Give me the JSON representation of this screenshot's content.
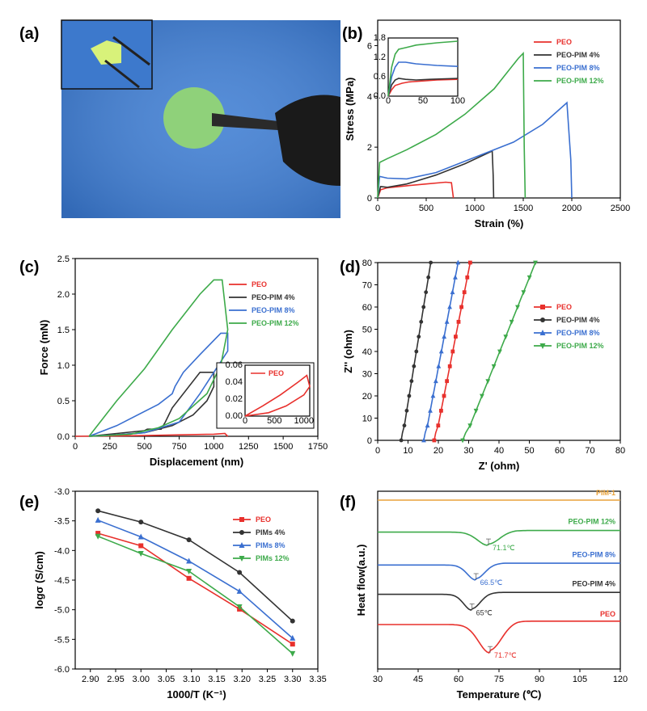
{
  "panels": {
    "a": "(a)",
    "b": "(b)",
    "c": "(c)",
    "d": "(d)",
    "e": "(e)",
    "f": "(f)"
  },
  "chart_data": [
    {
      "id": "a",
      "type": "photo",
      "description_colors": {
        "background": "#3f7ed3",
        "disk": "#8fd17a"
      }
    },
    {
      "id": "b",
      "type": "line",
      "xlabel": "Strain (%)",
      "ylabel": "Stress (MPa)",
      "xlim": [
        0,
        2500
      ],
      "ylim": [
        0,
        7
      ],
      "xticks": [
        "0",
        "500",
        "1000",
        "1500",
        "2000",
        "2500"
      ],
      "yticks": [
        "0",
        "2",
        "4",
        "6"
      ],
      "series": [
        {
          "name": "PEO",
          "color": "#e8302c",
          "x": [
            0,
            30,
            100,
            300,
            500,
            700,
            760,
            770,
            780
          ],
          "y": [
            0,
            0.32,
            0.4,
            0.48,
            0.55,
            0.62,
            0.6,
            0.3,
            0
          ]
        },
        {
          "name": "PEO-PIM 4%",
          "color": "#333333",
          "x": [
            0,
            30,
            100,
            300,
            600,
            900,
            1180,
            1190,
            1195
          ],
          "y": [
            0,
            0.45,
            0.42,
            0.55,
            0.9,
            1.35,
            1.85,
            0.9,
            0
          ]
        },
        {
          "name": "PEO-PIM 8%",
          "color": "#3a6fd0",
          "x": [
            0,
            20,
            100,
            300,
            600,
            1000,
            1400,
            1700,
            1950,
            1990,
            2000
          ],
          "y": [
            0,
            0.85,
            0.78,
            0.75,
            1.0,
            1.6,
            2.2,
            2.9,
            3.75,
            1.5,
            0
          ]
        },
        {
          "name": "PEO-PIM 12%",
          "color": "#3daa4a",
          "x": [
            0,
            20,
            100,
            300,
            600,
            900,
            1200,
            1450,
            1500,
            1510,
            1520
          ],
          "y": [
            0,
            1.4,
            1.55,
            1.9,
            2.5,
            3.3,
            4.3,
            5.5,
            5.7,
            2.0,
            0
          ]
        }
      ],
      "inset": {
        "xlim": [
          0,
          100
        ],
        "ylim": [
          0,
          1.8
        ],
        "xticks": [
          "0",
          "50",
          "100"
        ],
        "yticks": [
          "0.0",
          "0.6",
          "1.2",
          "1.8"
        ],
        "series": [
          {
            "color": "#e8302c",
            "x": [
              0,
              5,
              10,
              20,
              30,
              50,
              70,
              100
            ],
            "y": [
              0,
              0.2,
              0.33,
              0.4,
              0.44,
              0.47,
              0.5,
              0.52
            ]
          },
          {
            "color": "#333333",
            "x": [
              0,
              5,
              10,
              15,
              25,
              40,
              60,
              100
            ],
            "y": [
              0,
              0.35,
              0.5,
              0.55,
              0.52,
              0.5,
              0.52,
              0.55
            ]
          },
          {
            "color": "#3a6fd0",
            "x": [
              0,
              5,
              10,
              15,
              25,
              40,
              70,
              100
            ],
            "y": [
              0,
              0.6,
              0.9,
              1.05,
              1.05,
              1.0,
              0.95,
              0.92
            ]
          },
          {
            "color": "#3daa4a",
            "x": [
              0,
              5,
              10,
              15,
              25,
              40,
              70,
              100
            ],
            "y": [
              0,
              0.9,
              1.3,
              1.45,
              1.5,
              1.58,
              1.65,
              1.7
            ]
          }
        ]
      }
    },
    {
      "id": "c",
      "type": "line",
      "xlabel": "Displacement (nm)",
      "ylabel": "Force (mN)",
      "xlim": [
        0,
        1750
      ],
      "ylim": [
        0,
        2.5
      ],
      "xticks": [
        "0",
        "250",
        "500",
        "750",
        "1000",
        "1250",
        "1500",
        "1750"
      ],
      "yticks": [
        "0.0",
        "0.5",
        "1.0",
        "1.5",
        "2.0",
        "2.5"
      ],
      "series": [
        {
          "name": "PEO",
          "color": "#e8302c",
          "x": [
            0,
            500,
            1000,
            1080,
            1100
          ],
          "y": [
            0,
            0.01,
            0.03,
            0.04,
            0.0
          ]
        },
        {
          "name": "PEO-PIM 4%",
          "color": "#333333",
          "x": [
            100,
            300,
            500,
            520,
            620,
            650,
            700,
            900,
            1000,
            1000,
            950,
            850,
            700,
            500,
            300,
            100
          ],
          "y": [
            0,
            0.04,
            0.08,
            0.1,
            0.1,
            0.2,
            0.4,
            0.9,
            0.9,
            0.7,
            0.5,
            0.3,
            0.15,
            0.05,
            0.02,
            0
          ]
        },
        {
          "name": "PEO-PIM 8%",
          "color": "#3a6fd0",
          "x": [
            100,
            300,
            600,
            700,
            720,
            780,
            900,
            1050,
            1100,
            1100,
            1000,
            900,
            750,
            500,
            300,
            100
          ],
          "y": [
            0,
            0.15,
            0.45,
            0.6,
            0.7,
            0.9,
            1.15,
            1.45,
            1.45,
            1.2,
            0.9,
            0.6,
            0.2,
            0.05,
            0.02,
            0
          ]
        },
        {
          "name": "PEO-PIM 12%",
          "color": "#3daa4a",
          "x": [
            100,
            300,
            500,
            700,
            900,
            1000,
            1060,
            1100,
            1050,
            950,
            750,
            600,
            400,
            100
          ],
          "y": [
            0,
            0.5,
            0.95,
            1.5,
            2.0,
            2.2,
            2.2,
            1.5,
            1.0,
            0.6,
            0.25,
            0.12,
            0.03,
            0
          ]
        }
      ],
      "inset": {
        "legend": "PEO",
        "xlim": [
          0,
          1100
        ],
        "ylim": [
          0,
          0.06
        ],
        "xticks": [
          "0",
          "500",
          "1000"
        ],
        "yticks": [
          "0.00",
          "0.02",
          "0.04",
          "0.06"
        ],
        "series": [
          {
            "color": "#e8302c",
            "x": [
              0,
              300,
              600,
              900,
              1050,
              1100,
              1000,
              700,
              400,
              0
            ],
            "y": [
              0,
              0.012,
              0.025,
              0.04,
              0.048,
              0.035,
              0.025,
              0.012,
              0.004,
              0
            ]
          }
        ]
      }
    },
    {
      "id": "d",
      "type": "scatter",
      "xlabel": "Z' (ohm)",
      "ylabel": "Z'' (ohm)",
      "xlim": [
        0,
        80
      ],
      "ylim": [
        0,
        80
      ],
      "xticks": [
        "0",
        "10",
        "20",
        "30",
        "40",
        "50",
        "60",
        "70",
        "80"
      ],
      "yticks": [
        "0",
        "10",
        "20",
        "30",
        "40",
        "50",
        "60",
        "70",
        "80"
      ],
      "series": [
        {
          "name": "PEO",
          "color": "#e8302c",
          "marker": "square",
          "x0": 19,
          "x1": 30.5,
          "bend": 1.2
        },
        {
          "name": "PEO-PIM 4%",
          "color": "#333333",
          "marker": "circle",
          "x0": 8,
          "x1": 17.5,
          "bend": 0.8
        },
        {
          "name": "PEO-PIM 8%",
          "color": "#3a6fd0",
          "marker": "triangle",
          "x0": 15.5,
          "x1": 26.5,
          "bend": 1.0
        },
        {
          "name": "PEO-PIM 12%",
          "color": "#3daa4a",
          "marker": "tridown",
          "x0": 28.5,
          "x1": 52,
          "bend": 1.6
        }
      ]
    },
    {
      "id": "e",
      "type": "line",
      "xlabel": "1000/T (K⁻¹)",
      "ylabel": "logσ (S/cm)",
      "xlim": [
        2.87,
        3.35
      ],
      "ylim": [
        -6.0,
        -3.0
      ],
      "xticks": [
        "2.90",
        "2.95",
        "3.00",
        "3.05",
        "3.10",
        "3.15",
        "3.20",
        "3.25",
        "3.30",
        "3.35"
      ],
      "yticks": [
        "-3.0",
        "-3.5",
        "-4.0",
        "-4.5",
        "-5.0",
        "-5.5",
        "-6.0"
      ],
      "series": [
        {
          "name": "PEO",
          "color": "#e8302c",
          "marker": "square",
          "x": [
            2.915,
            3.0,
            3.095,
            3.195,
            3.3
          ],
          "y": [
            -3.71,
            -3.92,
            -4.47,
            -4.99,
            -5.58
          ]
        },
        {
          "name": "PIMs 4%",
          "color": "#333333",
          "marker": "circle",
          "x": [
            2.915,
            3.0,
            3.095,
            3.195,
            3.3
          ],
          "y": [
            -3.33,
            -3.52,
            -3.82,
            -4.37,
            -5.19
          ]
        },
        {
          "name": "PIMs 8%",
          "color": "#3a6fd0",
          "marker": "triangle",
          "x": [
            2.915,
            3.0,
            3.095,
            3.195,
            3.3
          ],
          "y": [
            -3.49,
            -3.77,
            -4.18,
            -4.69,
            -5.48
          ]
        },
        {
          "name": "PIMs 12%",
          "color": "#3daa4a",
          "marker": "tridown",
          "x": [
            2.915,
            3.0,
            3.095,
            3.195,
            3.3
          ],
          "y": [
            -3.76,
            -4.05,
            -4.35,
            -4.95,
            -5.74
          ]
        }
      ]
    },
    {
      "id": "f",
      "type": "line",
      "xlabel": "Temperature (℃)",
      "ylabel": "Heat flow(a.u.)",
      "xlim": [
        30,
        120
      ],
      "ylim": [
        0,
        10
      ],
      "xticks": [
        "30",
        "45",
        "60",
        "75",
        "90",
        "105",
        "120"
      ],
      "series": [
        {
          "name": "PIM-1",
          "color": "#e8a23a",
          "base": 9.5,
          "dip": 0,
          "tm": 0,
          "width": 1
        },
        {
          "name": "PEO-PIM 12%",
          "color": "#3daa4a",
          "base": 7.7,
          "dip": 0.75,
          "tm": 71.1,
          "width": 4,
          "label": "71.1℃"
        },
        {
          "name": "PEO-PIM 8%",
          "color": "#3a6fd0",
          "base": 5.85,
          "dip": 0.85,
          "tm": 66.5,
          "width": 3.2,
          "label": "66.5℃"
        },
        {
          "name": "PEO-PIM 4%",
          "color": "#333333",
          "base": 4.2,
          "dip": 0.9,
          "tm": 65,
          "width": 3.0,
          "label": "65℃"
        },
        {
          "name": "PEO",
          "color": "#e8302c",
          "base": 2.5,
          "dip": 1.6,
          "tm": 71.7,
          "width": 4.2,
          "label": "71.7℃"
        }
      ]
    }
  ]
}
